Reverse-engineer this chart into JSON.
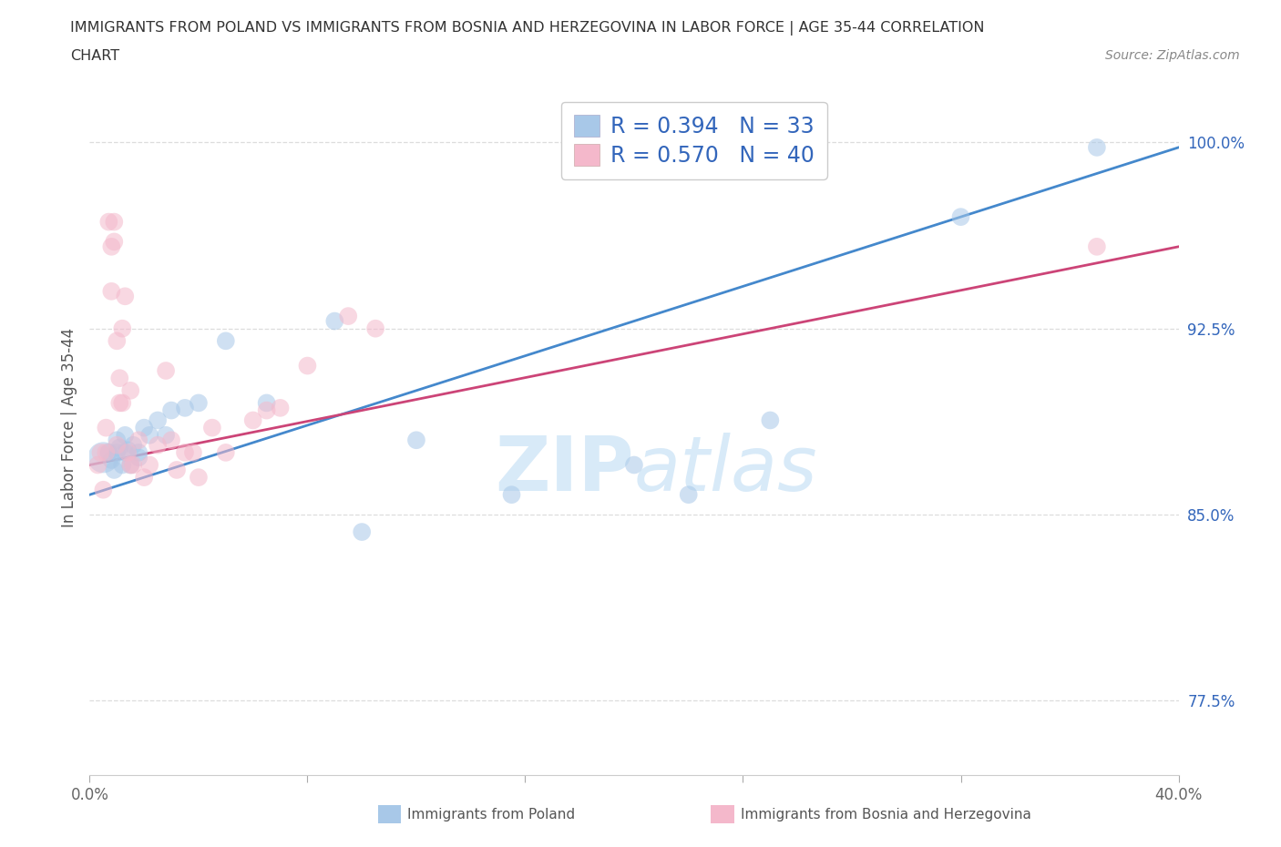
{
  "title_line1": "IMMIGRANTS FROM POLAND VS IMMIGRANTS FROM BOSNIA AND HERZEGOVINA IN LABOR FORCE | AGE 35-44 CORRELATION",
  "title_line2": "CHART",
  "source_text": "Source: ZipAtlas.com",
  "ylabel": "In Labor Force | Age 35-44",
  "xlim": [
    0.0,
    0.4
  ],
  "ylim": [
    0.745,
    1.025
  ],
  "ytick_labels_right": [
    "77.5%",
    "85.0%",
    "92.5%",
    "100.0%"
  ],
  "ytick_values_right": [
    0.775,
    0.85,
    0.925,
    1.0
  ],
  "R_poland": 0.394,
  "N_poland": 33,
  "R_bosnia": 0.57,
  "N_bosnia": 40,
  "color_poland": "#a8c8e8",
  "color_bosnia": "#f4b8cb",
  "trend_color_poland": "#4488cc",
  "trend_color_bosnia": "#cc4477",
  "legend_text_color": "#3366bb",
  "watermark_color": "#d8eaf8",
  "poland_x": [
    0.005,
    0.007,
    0.008,
    0.009,
    0.01,
    0.01,
    0.011,
    0.012,
    0.013,
    0.013,
    0.014,
    0.015,
    0.016,
    0.018,
    0.018,
    0.02,
    0.022,
    0.025,
    0.028,
    0.03,
    0.035,
    0.04,
    0.05,
    0.065,
    0.09,
    0.1,
    0.12,
    0.155,
    0.2,
    0.22,
    0.25,
    0.32,
    0.37
  ],
  "poland_y": [
    0.873,
    0.875,
    0.872,
    0.868,
    0.875,
    0.88,
    0.877,
    0.87,
    0.882,
    0.875,
    0.876,
    0.87,
    0.878,
    0.875,
    0.873,
    0.885,
    0.882,
    0.888,
    0.882,
    0.892,
    0.893,
    0.895,
    0.92,
    0.895,
    0.928,
    0.843,
    0.88,
    0.858,
    0.87,
    0.858,
    0.888,
    0.97,
    0.998
  ],
  "poland_sizes": [
    600,
    200,
    200,
    200,
    200,
    200,
    200,
    200,
    200,
    200,
    200,
    200,
    200,
    200,
    200,
    200,
    200,
    200,
    200,
    200,
    200,
    200,
    200,
    200,
    200,
    200,
    200,
    200,
    200,
    200,
    200,
    200,
    200
  ],
  "bosnia_x": [
    0.003,
    0.004,
    0.005,
    0.006,
    0.006,
    0.007,
    0.008,
    0.008,
    0.009,
    0.009,
    0.01,
    0.01,
    0.011,
    0.011,
    0.012,
    0.012,
    0.013,
    0.014,
    0.015,
    0.015,
    0.016,
    0.018,
    0.02,
    0.022,
    0.025,
    0.028,
    0.03,
    0.032,
    0.035,
    0.038,
    0.04,
    0.045,
    0.05,
    0.06,
    0.065,
    0.07,
    0.08,
    0.095,
    0.105,
    0.37
  ],
  "bosnia_y": [
    0.87,
    0.875,
    0.86,
    0.875,
    0.885,
    0.968,
    0.94,
    0.958,
    0.96,
    0.968,
    0.878,
    0.92,
    0.895,
    0.905,
    0.895,
    0.925,
    0.938,
    0.875,
    0.87,
    0.9,
    0.87,
    0.88,
    0.865,
    0.87,
    0.878,
    0.908,
    0.88,
    0.868,
    0.875,
    0.875,
    0.865,
    0.885,
    0.875,
    0.888,
    0.892,
    0.893,
    0.91,
    0.93,
    0.925,
    0.958
  ],
  "bosnia_sizes": [
    200,
    200,
    200,
    200,
    200,
    200,
    200,
    200,
    200,
    200,
    200,
    200,
    200,
    200,
    200,
    200,
    200,
    200,
    200,
    200,
    200,
    200,
    200,
    200,
    200,
    200,
    200,
    200,
    200,
    200,
    200,
    200,
    200,
    200,
    200,
    200,
    200,
    200,
    200,
    200
  ],
  "grid_color": "#dddddd",
  "bg_color": "#ffffff",
  "trend_poland_x0": 0.0,
  "trend_poland_y0": 0.858,
  "trend_poland_x1": 0.4,
  "trend_poland_y1": 0.998,
  "trend_bosnia_x0": 0.0,
  "trend_bosnia_y0": 0.87,
  "trend_bosnia_x1": 0.4,
  "trend_bosnia_y1": 0.958
}
